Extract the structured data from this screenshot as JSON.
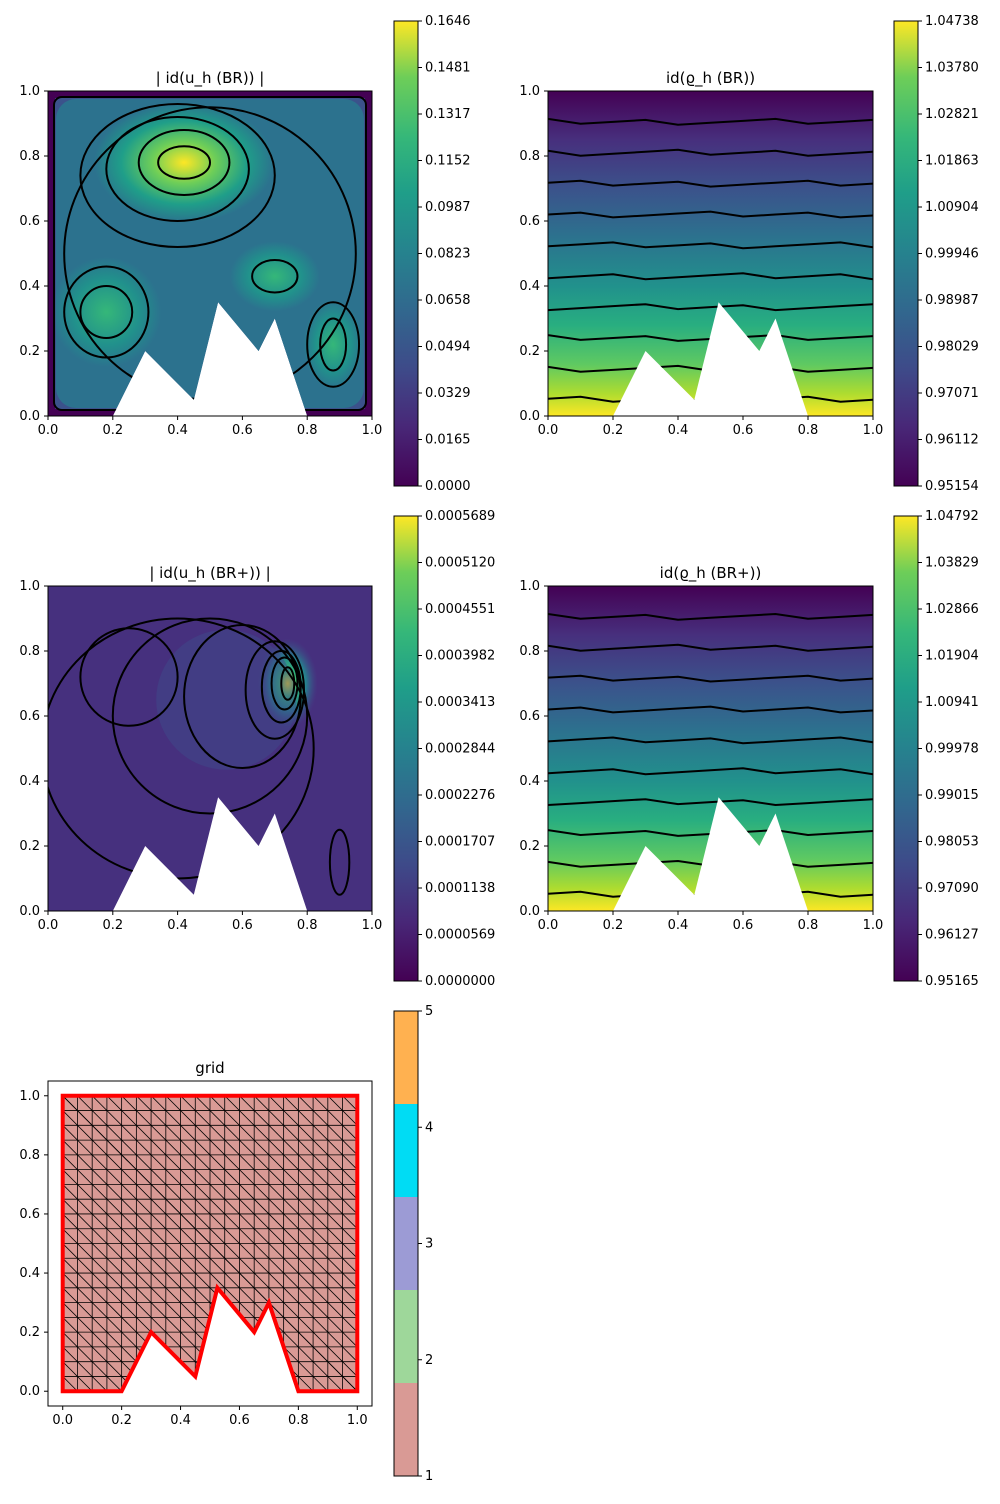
{
  "chart_data": [
    {
      "type": "contour",
      "title": "| id(u_h (BR)) |",
      "xlim": [
        0,
        1
      ],
      "ylim": [
        0,
        1
      ],
      "xticks": [
        "0.0",
        "0.2",
        "0.4",
        "0.6",
        "0.8",
        "1.0"
      ],
      "yticks": [
        "0.0",
        "0.2",
        "0.4",
        "0.6",
        "0.8",
        "1.0"
      ],
      "colorbar": {
        "colormap": "viridis",
        "min": 0.0,
        "max": 0.1646,
        "ticks": [
          "0.0000",
          "0.0165",
          "0.0329",
          "0.0494",
          "0.0658",
          "0.0823",
          "0.0987",
          "0.1152",
          "0.1317",
          "0.1481",
          "0.1646"
        ]
      },
      "domain_boundary": [
        [
          0,
          0
        ],
        [
          0.2,
          0
        ],
        [
          0.3,
          0.2
        ],
        [
          0.45,
          0.05
        ],
        [
          0.525,
          0.35
        ],
        [
          0.65,
          0.2
        ],
        [
          0.7,
          0.3
        ],
        [
          0.8,
          0
        ],
        [
          1,
          0
        ],
        [
          1,
          1
        ],
        [
          0,
          1
        ]
      ]
    },
    {
      "type": "contour",
      "title": "id(ϱ_h (BR))",
      "xlim": [
        0,
        1
      ],
      "ylim": [
        0,
        1
      ],
      "xticks": [
        "0.0",
        "0.2",
        "0.4",
        "0.6",
        "0.8",
        "1.0"
      ],
      "yticks": [
        "0.0",
        "0.2",
        "0.4",
        "0.6",
        "0.8",
        "1.0"
      ],
      "colorbar": {
        "colormap": "viridis",
        "min": 0.95154,
        "max": 1.04738,
        "ticks": [
          "0.95154",
          "0.96112",
          "0.97071",
          "0.98029",
          "0.98987",
          "0.99946",
          "1.00904",
          "1.01863",
          "1.02821",
          "1.03780",
          "1.04738"
        ]
      },
      "domain_boundary": [
        [
          0,
          0
        ],
        [
          0.2,
          0
        ],
        [
          0.3,
          0.2
        ],
        [
          0.45,
          0.05
        ],
        [
          0.525,
          0.35
        ],
        [
          0.65,
          0.2
        ],
        [
          0.7,
          0.3
        ],
        [
          0.8,
          0
        ],
        [
          1,
          0
        ],
        [
          1,
          1
        ],
        [
          0,
          1
        ]
      ]
    },
    {
      "type": "contour",
      "title": "| id(u_h (BR+)) |",
      "xlim": [
        0,
        1
      ],
      "ylim": [
        0,
        1
      ],
      "xticks": [
        "0.0",
        "0.2",
        "0.4",
        "0.6",
        "0.8",
        "1.0"
      ],
      "yticks": [
        "0.0",
        "0.2",
        "0.4",
        "0.6",
        "0.8",
        "1.0"
      ],
      "colorbar": {
        "colormap": "viridis",
        "min": 0.0,
        "max": 0.0005689,
        "ticks": [
          "0.0000000",
          "0.0000569",
          "0.0001138",
          "0.0001707",
          "0.0002276",
          "0.0002844",
          "0.0003413",
          "0.0003982",
          "0.0004551",
          "0.0005120",
          "0.0005689"
        ]
      },
      "domain_boundary": [
        [
          0,
          0
        ],
        [
          0.2,
          0
        ],
        [
          0.3,
          0.2
        ],
        [
          0.45,
          0.05
        ],
        [
          0.525,
          0.35
        ],
        [
          0.65,
          0.2
        ],
        [
          0.7,
          0.3
        ],
        [
          0.8,
          0
        ],
        [
          1,
          0
        ],
        [
          1,
          1
        ],
        [
          0,
          1
        ]
      ]
    },
    {
      "type": "contour",
      "title": "id(ϱ_h (BR+))",
      "xlim": [
        0,
        1
      ],
      "ylim": [
        0,
        1
      ],
      "xticks": [
        "0.0",
        "0.2",
        "0.4",
        "0.6",
        "0.8",
        "1.0"
      ],
      "yticks": [
        "0.0",
        "0.2",
        "0.4",
        "0.6",
        "0.8",
        "1.0"
      ],
      "colorbar": {
        "colormap": "viridis",
        "min": 0.95165,
        "max": 1.04792,
        "ticks": [
          "0.95165",
          "0.96127",
          "0.97090",
          "0.98053",
          "0.99015",
          "0.99978",
          "1.00941",
          "1.01904",
          "1.02866",
          "1.03829",
          "1.04792"
        ]
      },
      "domain_boundary": [
        [
          0,
          0
        ],
        [
          0.2,
          0
        ],
        [
          0.3,
          0.2
        ],
        [
          0.45,
          0.05
        ],
        [
          0.525,
          0.35
        ],
        [
          0.65,
          0.2
        ],
        [
          0.7,
          0.3
        ],
        [
          0.8,
          0
        ],
        [
          1,
          0
        ],
        [
          1,
          1
        ],
        [
          0,
          1
        ]
      ]
    },
    {
      "type": "mesh",
      "title": "grid",
      "xlim": [
        -0.05,
        1.05
      ],
      "ylim": [
        -0.05,
        1.05
      ],
      "xticks": [
        "0.0",
        "0.2",
        "0.4",
        "0.6",
        "0.8",
        "1.0"
      ],
      "yticks": [
        "0.0",
        "0.2",
        "0.4",
        "0.6",
        "0.8",
        "1.0"
      ],
      "colorbar": {
        "min": 1,
        "max": 5,
        "ticks": [
          "1",
          "2",
          "3",
          "4",
          "5"
        ],
        "colors": [
          "#d99a95",
          "#9ed79a",
          "#9c9bd5",
          "#00dcf4",
          "#ffb150"
        ]
      },
      "fill_color": "#d99a95",
      "boundary_color": "#ff0000",
      "domain_boundary": [
        [
          0,
          0
        ],
        [
          0.2,
          0
        ],
        [
          0.3,
          0.2
        ],
        [
          0.45,
          0.05
        ],
        [
          0.525,
          0.35
        ],
        [
          0.65,
          0.2
        ],
        [
          0.7,
          0.3
        ],
        [
          0.8,
          0
        ],
        [
          1,
          0
        ],
        [
          1,
          1
        ],
        [
          0,
          1
        ]
      ]
    }
  ]
}
